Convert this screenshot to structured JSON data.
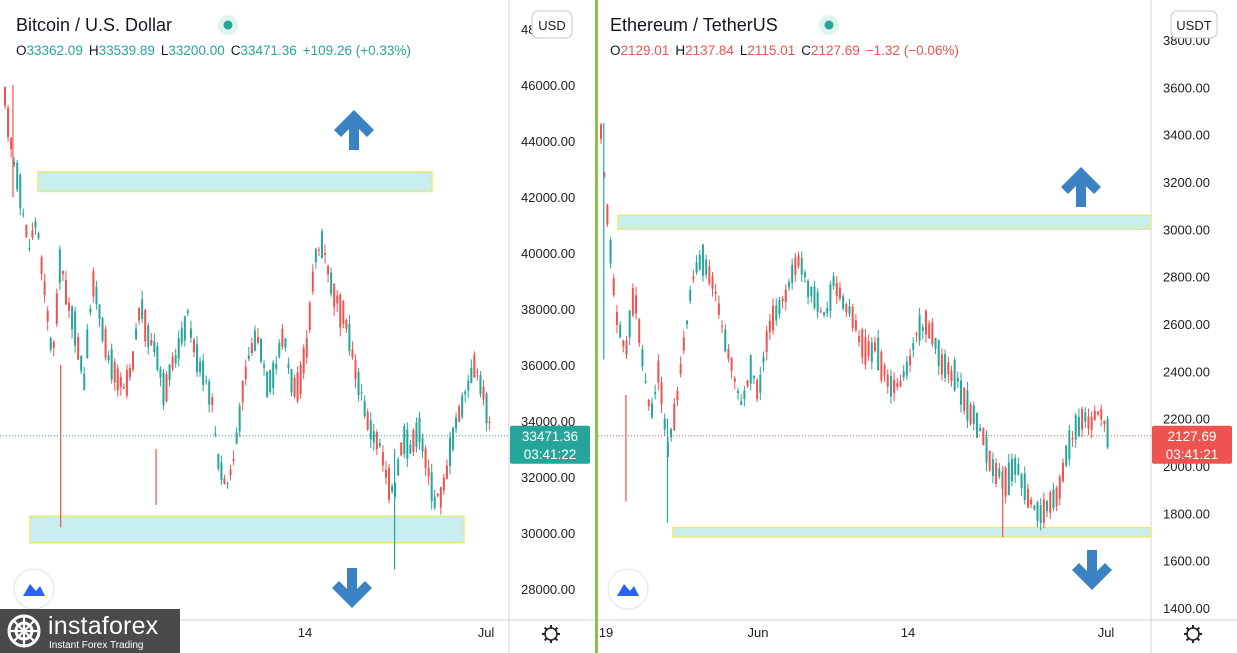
{
  "chart_data": [
    {
      "type": "candlestick",
      "title": "Bitcoin / U.S. Dollar",
      "ohlc": {
        "o_label": "O",
        "o": "33362.09",
        "h_label": "H",
        "h": "33539.89",
        "l_label": "L",
        "l": "33200.00",
        "c_label": "C",
        "c": "33471.36",
        "change": "+109.26 (+0.33%)"
      },
      "currency": "USD",
      "y_ticks": [
        "46000.00",
        "44000.00",
        "42000.00",
        "40000.00",
        "38000.00",
        "36000.00",
        "34000.00",
        "32000.00",
        "30000.00",
        "28000.00"
      ],
      "top_tick_partial": "48",
      "x_ticks": [
        "14",
        "Jul"
      ],
      "last_price": "33471.36",
      "countdown": "03:41:22",
      "ylim": [
        27000,
        48700
      ],
      "zones": [
        {
          "low": 42200,
          "high": 42900,
          "label": "resistance"
        },
        {
          "low": 29650,
          "high": 30600,
          "label": "support"
        }
      ],
      "approx_close_path": [
        [
          0,
          45500
        ],
        [
          3,
          43500
        ],
        [
          6,
          42000
        ],
        [
          9,
          40200
        ],
        [
          12,
          41200
        ],
        [
          15,
          38600
        ],
        [
          18,
          36200
        ],
        [
          21,
          39800
        ],
        [
          24,
          38100
        ],
        [
          27,
          37000
        ],
        [
          30,
          35400
        ],
        [
          33,
          39000
        ],
        [
          36,
          37800
        ],
        [
          39,
          36200
        ],
        [
          42,
          35600
        ],
        [
          45,
          35100
        ],
        [
          48,
          35900
        ],
        [
          51,
          38200
        ],
        [
          54,
          37000
        ],
        [
          57,
          36600
        ],
        [
          60,
          35000
        ],
        [
          63,
          35900
        ],
        [
          66,
          36700
        ],
        [
          69,
          37800
        ],
        [
          72,
          36300
        ],
        [
          75,
          35700
        ],
        [
          78,
          34800
        ],
        [
          81,
          32200
        ],
        [
          84,
          31800
        ],
        [
          87,
          33000
        ],
        [
          90,
          35200
        ],
        [
          93,
          36700
        ],
        [
          96,
          36900
        ],
        [
          99,
          35300
        ],
        [
          102,
          35800
        ],
        [
          105,
          37200
        ],
        [
          108,
          35400
        ],
        [
          111,
          35200
        ],
        [
          114,
          36800
        ],
        [
          117,
          39800
        ],
        [
          120,
          40400
        ],
        [
          123,
          38900
        ],
        [
          126,
          38100
        ],
        [
          129,
          37500
        ],
        [
          132,
          35900
        ],
        [
          135,
          34800
        ],
        [
          138,
          33600
        ],
        [
          141,
          33300
        ],
        [
          144,
          32000
        ],
        [
          147,
          31500
        ],
        [
          150,
          33400
        ],
        [
          153,
          33000
        ],
        [
          156,
          33800
        ],
        [
          159,
          32500
        ],
        [
          162,
          31200
        ],
        [
          165,
          31400
        ],
        [
          168,
          32900
        ],
        [
          171,
          34200
        ],
        [
          174,
          35000
        ],
        [
          177,
          36100
        ],
        [
          180,
          35200
        ],
        [
          183,
          33800
        ]
      ]
    },
    {
      "type": "candlestick",
      "title": "Ethereum / TetherUS",
      "ohlc": {
        "o_label": "O",
        "o": "2129.01",
        "h_label": "H",
        "h": "2137.84",
        "l_label": "L",
        "l": "2115.01",
        "c_label": "C",
        "c": "2127.69",
        "change": "−1.32 (−0.06%)"
      },
      "currency": "USDT",
      "y_ticks": [
        "3800.00",
        "3600.00",
        "3400.00",
        "3200.00",
        "3000.00",
        "2800.00",
        "2600.00",
        "2400.00",
        "2200.00",
        "2000.00",
        "1800.00",
        "1600.00",
        "1400.00"
      ],
      "x_ticks": [
        "19",
        "Jun",
        "14",
        "Jul"
      ],
      "last_price": "2127.69",
      "countdown": "03:41:21",
      "ylim": [
        1390,
        3865
      ],
      "zones": [
        {
          "low": 3000,
          "high": 3060,
          "label": "resistance"
        },
        {
          "low": 1700,
          "high": 1740,
          "label": "support"
        }
      ],
      "approx_close_path": [
        [
          0,
          3400
        ],
        [
          3,
          2950
        ],
        [
          6,
          2600
        ],
        [
          9,
          2480
        ],
        [
          12,
          2750
        ],
        [
          15,
          2450
        ],
        [
          18,
          2200
        ],
        [
          21,
          2420
        ],
        [
          24,
          2050
        ],
        [
          27,
          2250
        ],
        [
          30,
          2520
        ],
        [
          33,
          2780
        ],
        [
          36,
          2880
        ],
        [
          39,
          2820
        ],
        [
          42,
          2700
        ],
        [
          45,
          2520
        ],
        [
          48,
          2380
        ],
        [
          51,
          2250
        ],
        [
          54,
          2410
        ],
        [
          57,
          2300
        ],
        [
          60,
          2550
        ],
        [
          63,
          2650
        ],
        [
          66,
          2700
        ],
        [
          69,
          2820
        ],
        [
          72,
          2870
        ],
        [
          75,
          2750
        ],
        [
          78,
          2700
        ],
        [
          81,
          2620
        ],
        [
          84,
          2780
        ],
        [
          87,
          2700
        ],
        [
          90,
          2650
        ],
        [
          93,
          2550
        ],
        [
          96,
          2480
        ],
        [
          99,
          2500
        ],
        [
          102,
          2400
        ],
        [
          105,
          2320
        ],
        [
          108,
          2350
        ],
        [
          111,
          2420
        ],
        [
          114,
          2560
        ],
        [
          117,
          2600
        ],
        [
          120,
          2550
        ],
        [
          123,
          2440
        ],
        [
          126,
          2400
        ],
        [
          129,
          2350
        ],
        [
          132,
          2250
        ],
        [
          135,
          2200
        ],
        [
          138,
          2120
        ],
        [
          141,
          2000
        ],
        [
          144,
          1960
        ],
        [
          147,
          1930
        ],
        [
          150,
          2020
        ],
        [
          153,
          1900
        ],
        [
          156,
          1820
        ],
        [
          159,
          1780
        ],
        [
          162,
          1850
        ],
        [
          165,
          1880
        ],
        [
          168,
          2050
        ],
        [
          171,
          2150
        ],
        [
          174,
          2200
        ],
        [
          177,
          2180
        ],
        [
          180,
          2250
        ],
        [
          183,
          2128
        ]
      ]
    }
  ],
  "watermark": {
    "brand": "instaforex",
    "tagline": "Instant Forex Trading"
  },
  "colors": {
    "up": "#26a69a",
    "down": "#ef5350",
    "zone_fill": "#c9eef0",
    "zone_stroke": "#e9e87a",
    "arrow": "#3b82c4",
    "grid_text": "#1e1e1e",
    "last_btc": "#26a69a",
    "last_eth": "#ef5350",
    "status_dot": "#26a69a"
  }
}
